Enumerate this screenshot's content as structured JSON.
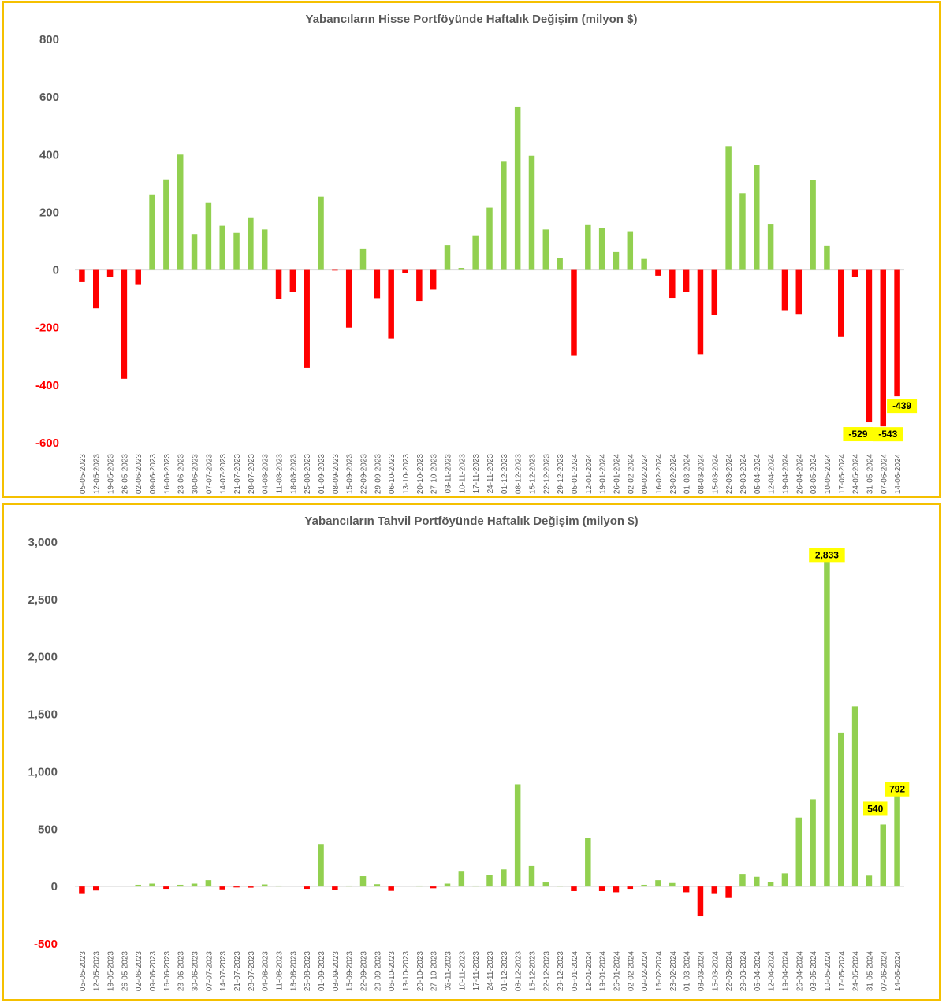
{
  "charts": {
    "stock": {
      "title": "Yabancıların Hisse Portföyünde Haftalık Değişim (milyon $)",
      "yticks": [
        "800",
        "600",
        "400",
        "200",
        "0",
        "-200",
        "-400",
        "-600"
      ]
    },
    "bond": {
      "title": "Yabancıların Tahvil Portföyünde Haftalık Değişim (milyon $)",
      "yticks": [
        "3,000",
        "2,500",
        "2,000",
        "1,500",
        "1,000",
        "500",
        "0",
        "-500"
      ]
    }
  },
  "colors": {
    "positive": "#92d050",
    "negative": "#ff0000",
    "label_bg": "#ffff00",
    "frame": "#f5c000"
  },
  "chart_data": [
    {
      "type": "bar",
      "title": "Yabancıların Hisse Portföyünde Haftalık Değişim (milyon $)",
      "categories": [
        "05-05-2023",
        "12-05-2023",
        "19-05-2023",
        "26-05-2023",
        "02-06-2023",
        "09-06-2023",
        "16-06-2023",
        "23-06-2023",
        "30-06-2023",
        "07-07-2023",
        "14-07-2023",
        "21-07-2023",
        "28-07-2023",
        "04-08-2023",
        "11-08-2023",
        "18-08-2023",
        "25-08-2023",
        "01-09-2023",
        "08-09-2023",
        "15-09-2023",
        "22-09-2023",
        "29-09-2023",
        "06-10-2023",
        "13-10-2023",
        "20-10-2023",
        "27-10-2023",
        "03-11-2023",
        "10-11-2023",
        "17-11-2023",
        "24-11-2023",
        "01-12-2023",
        "08-12-2023",
        "15-12-2023",
        "22-12-2023",
        "29-12-2023",
        "05-01-2024",
        "12-01-2024",
        "19-01-2024",
        "26-01-2024",
        "02-02-2024",
        "09-02-2024",
        "16-02-2024",
        "23-02-2024",
        "01-03-2024",
        "08-03-2024",
        "15-03-2024",
        "22-03-2024",
        "29-03-2024",
        "05-04-2024",
        "12-04-2024",
        "19-04-2024",
        "26-04-2024",
        "03-05-2024",
        "10-05-2024",
        "17-05-2024",
        "24-05-2024",
        "31-05-2024",
        "07-06-2024",
        "14-06-2024"
      ],
      "values": [
        -42,
        -133,
        -25,
        -378,
        -52,
        262,
        314,
        400,
        124,
        232,
        153,
        128,
        180,
        140,
        -100,
        -77,
        -340,
        254,
        -2,
        -200,
        73,
        -98,
        -238,
        -10,
        -108,
        -68,
        86,
        7,
        120,
        216,
        378,
        565,
        396,
        140,
        40,
        -298,
        158,
        146,
        62,
        134,
        38,
        -20,
        -97,
        -75,
        -292,
        -157,
        430,
        266,
        365,
        160,
        -142,
        -155,
        312,
        84,
        -233,
        -25,
        -529,
        -543,
        -439
      ],
      "labels": [
        {
          "category": "31-05-2024",
          "text": "-529"
        },
        {
          "category": "07-06-2024",
          "text": "-543"
        },
        {
          "category": "14-06-2024",
          "text": "-439"
        }
      ],
      "ylim": [
        -600,
        800
      ],
      "grid": false
    },
    {
      "type": "bar",
      "title": "Yabancıların Tahvil Portföyünde Haftalık Değişim (milyon $)",
      "categories": [
        "05-05-2023",
        "12-05-2023",
        "19-05-2023",
        "26-05-2023",
        "02-06-2023",
        "09-06-2023",
        "16-06-2023",
        "23-06-2023",
        "30-06-2023",
        "07-07-2023",
        "14-07-2023",
        "21-07-2023",
        "28-07-2023",
        "04-08-2023",
        "11-08-2023",
        "18-08-2023",
        "25-08-2023",
        "01-09-2023",
        "08-09-2023",
        "15-09-2023",
        "22-09-2023",
        "29-09-2023",
        "06-10-2023",
        "13-10-2023",
        "20-10-2023",
        "27-10-2023",
        "03-11-2023",
        "10-11-2023",
        "17-11-2023",
        "24-11-2023",
        "01-12-2023",
        "08-12-2023",
        "15-12-2023",
        "22-12-2023",
        "29-12-2023",
        "05-01-2024",
        "12-01-2024",
        "19-01-2024",
        "26-01-2024",
        "02-02-2024",
        "09-02-2024",
        "16-02-2024",
        "23-02-2024",
        "01-03-2024",
        "08-03-2024",
        "15-03-2024",
        "22-03-2024",
        "29-03-2024",
        "05-04-2024",
        "12-04-2024",
        "19-04-2024",
        "26-04-2024",
        "03-05-2024",
        "10-05-2024",
        "17-05-2024",
        "24-05-2024",
        "31-05-2024",
        "07-06-2024",
        "14-06-2024"
      ],
      "values": [
        -65,
        -35,
        0,
        0,
        15,
        25,
        -20,
        15,
        25,
        55,
        -25,
        -8,
        -10,
        18,
        8,
        0,
        -20,
        370,
        -30,
        8,
        90,
        20,
        -38,
        0,
        8,
        -15,
        25,
        130,
        8,
        100,
        150,
        890,
        180,
        35,
        5,
        -40,
        425,
        -40,
        -50,
        -20,
        15,
        55,
        30,
        -50,
        -260,
        -65,
        -100,
        110,
        85,
        40,
        115,
        600,
        760,
        2833,
        1340,
        1570,
        95,
        540,
        792
      ],
      "labels": [
        {
          "category": "10-05-2024",
          "text": "2,833"
        },
        {
          "category": "07-06-2024",
          "text": "540"
        },
        {
          "category": "14-06-2024",
          "text": "792"
        }
      ],
      "ylim": [
        -500,
        3000
      ],
      "grid": false
    }
  ]
}
